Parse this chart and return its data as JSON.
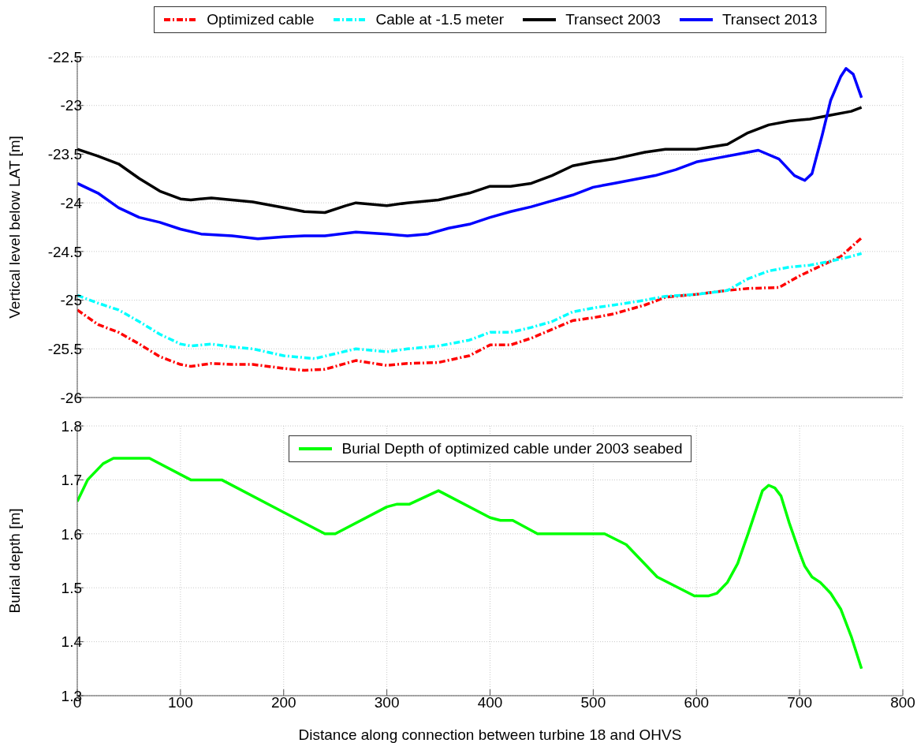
{
  "chart_data": [
    {
      "type": "line",
      "ylabel": "Vertical level below LAT [m]",
      "xlim": [
        0,
        800
      ],
      "xticks": [
        0,
        100,
        200,
        300,
        400,
        500,
        600,
        700,
        800
      ],
      "ylim": [
        -26,
        -22.5
      ],
      "yticks": [
        -26,
        -25.5,
        -25,
        -24.5,
        -24,
        -23.5,
        -23,
        -22.5
      ],
      "tick_labels": "y",
      "grid": true,
      "legend": "top",
      "series": [
        {
          "name": "Optimized cable",
          "color": "#ff0000",
          "line_style": "dashed",
          "x": [
            0,
            20,
            40,
            60,
            80,
            100,
            110,
            130,
            150,
            170,
            200,
            220,
            240,
            270,
            300,
            320,
            350,
            380,
            400,
            420,
            440,
            460,
            480,
            500,
            520,
            550,
            570,
            600,
            630,
            650,
            680,
            700,
            720,
            740,
            760
          ],
          "values": [
            -25.1,
            -25.25,
            -25.33,
            -25.45,
            -25.58,
            -25.66,
            -25.68,
            -25.65,
            -25.66,
            -25.66,
            -25.7,
            -25.72,
            -25.71,
            -25.62,
            -25.67,
            -25.65,
            -25.64,
            -25.57,
            -25.46,
            -25.46,
            -25.39,
            -25.3,
            -25.21,
            -25.18,
            -25.14,
            -25.05,
            -24.97,
            -24.94,
            -24.9,
            -24.88,
            -24.87,
            -24.75,
            -24.65,
            -24.55,
            -24.36
          ]
        },
        {
          "name": "Cable at -1.5 meter",
          "color": "#00ffff",
          "line_style": "dashed",
          "x": [
            0,
            20,
            40,
            60,
            80,
            100,
            110,
            130,
            150,
            170,
            200,
            230,
            250,
            270,
            300,
            320,
            350,
            380,
            400,
            420,
            440,
            460,
            480,
            500,
            520,
            550,
            570,
            600,
            630,
            650,
            670,
            690,
            710,
            730,
            750,
            760
          ],
          "values": [
            -24.95,
            -25.03,
            -25.1,
            -25.22,
            -25.35,
            -25.45,
            -25.47,
            -25.45,
            -25.48,
            -25.5,
            -25.57,
            -25.6,
            -25.55,
            -25.5,
            -25.53,
            -25.5,
            -25.47,
            -25.41,
            -25.33,
            -25.33,
            -25.28,
            -25.22,
            -25.12,
            -25.08,
            -25.05,
            -25.0,
            -24.96,
            -24.94,
            -24.9,
            -24.78,
            -24.7,
            -24.66,
            -24.64,
            -24.6,
            -24.55,
            -24.52
          ]
        },
        {
          "name": "Transect 2003",
          "color": "#000000",
          "line_style": "solid",
          "x": [
            0,
            20,
            40,
            60,
            80,
            100,
            110,
            130,
            150,
            170,
            200,
            220,
            240,
            260,
            270,
            300,
            320,
            350,
            380,
            400,
            420,
            440,
            460,
            480,
            500,
            520,
            550,
            570,
            600,
            630,
            650,
            670,
            690,
            710,
            730,
            750,
            760
          ],
          "values": [
            -23.45,
            -23.52,
            -23.6,
            -23.75,
            -23.88,
            -23.96,
            -23.97,
            -23.95,
            -23.97,
            -23.99,
            -24.05,
            -24.09,
            -24.1,
            -24.03,
            -24.0,
            -24.03,
            -24.0,
            -23.97,
            -23.9,
            -23.83,
            -23.83,
            -23.8,
            -23.72,
            -23.62,
            -23.58,
            -23.55,
            -23.48,
            -23.45,
            -23.45,
            -23.4,
            -23.28,
            -23.2,
            -23.16,
            -23.14,
            -23.1,
            -23.06,
            -23.02
          ]
        },
        {
          "name": "Transect 2013",
          "color": "#0000ff",
          "line_style": "solid",
          "x": [
            0,
            20,
            40,
            60,
            80,
            100,
            120,
            150,
            175,
            200,
            220,
            240,
            270,
            300,
            320,
            340,
            360,
            380,
            400,
            420,
            440,
            460,
            480,
            500,
            520,
            540,
            560,
            580,
            600,
            620,
            640,
            660,
            680,
            695,
            705,
            712,
            722,
            730,
            740,
            745,
            752,
            760
          ],
          "values": [
            -23.8,
            -23.9,
            -24.05,
            -24.15,
            -24.2,
            -24.27,
            -24.32,
            -24.34,
            -24.37,
            -24.35,
            -24.34,
            -24.34,
            -24.3,
            -24.32,
            -24.34,
            -24.32,
            -24.26,
            -24.22,
            -24.15,
            -24.09,
            -24.04,
            -23.98,
            -23.92,
            -23.84,
            -23.8,
            -23.76,
            -23.72,
            -23.66,
            -23.58,
            -23.54,
            -23.5,
            -23.46,
            -23.55,
            -23.72,
            -23.77,
            -23.7,
            -23.3,
            -22.95,
            -22.7,
            -22.62,
            -22.68,
            -22.92
          ]
        }
      ]
    },
    {
      "type": "line",
      "xlabel": "Distance along connection between turbine 18 and OHVS",
      "ylabel": "Burial depth [m]",
      "xlim": [
        0,
        800
      ],
      "xticks": [
        0,
        100,
        200,
        300,
        400,
        500,
        600,
        700,
        800
      ],
      "ylim": [
        1.3,
        1.8
      ],
      "yticks": [
        1.3,
        1.4,
        1.5,
        1.6,
        1.7,
        1.8
      ],
      "grid": true,
      "legend": "top",
      "series": [
        {
          "name": "Burial Depth of optimized cable under 2003 seabed",
          "color": "#00ff00",
          "line_style": "solid",
          "x": [
            0,
            10,
            25,
            35,
            70,
            110,
            140,
            200,
            240,
            250,
            300,
            310,
            322,
            350,
            400,
            410,
            422,
            446,
            511,
            532,
            562,
            598,
            612,
            620,
            630,
            640,
            650,
            664,
            670,
            676,
            682,
            690,
            700,
            705,
            712,
            720,
            730,
            740,
            750,
            760
          ],
          "values": [
            1.66,
            1.7,
            1.73,
            1.74,
            1.74,
            1.7,
            1.7,
            1.64,
            1.6,
            1.6,
            1.65,
            1.655,
            1.655,
            1.68,
            1.63,
            1.625,
            1.625,
            1.6,
            1.6,
            1.58,
            1.52,
            1.485,
            1.485,
            1.49,
            1.51,
            1.545,
            1.6,
            1.68,
            1.69,
            1.685,
            1.67,
            1.62,
            1.565,
            1.54,
            1.52,
            1.51,
            1.49,
            1.46,
            1.41,
            1.35
          ]
        }
      ]
    }
  ]
}
